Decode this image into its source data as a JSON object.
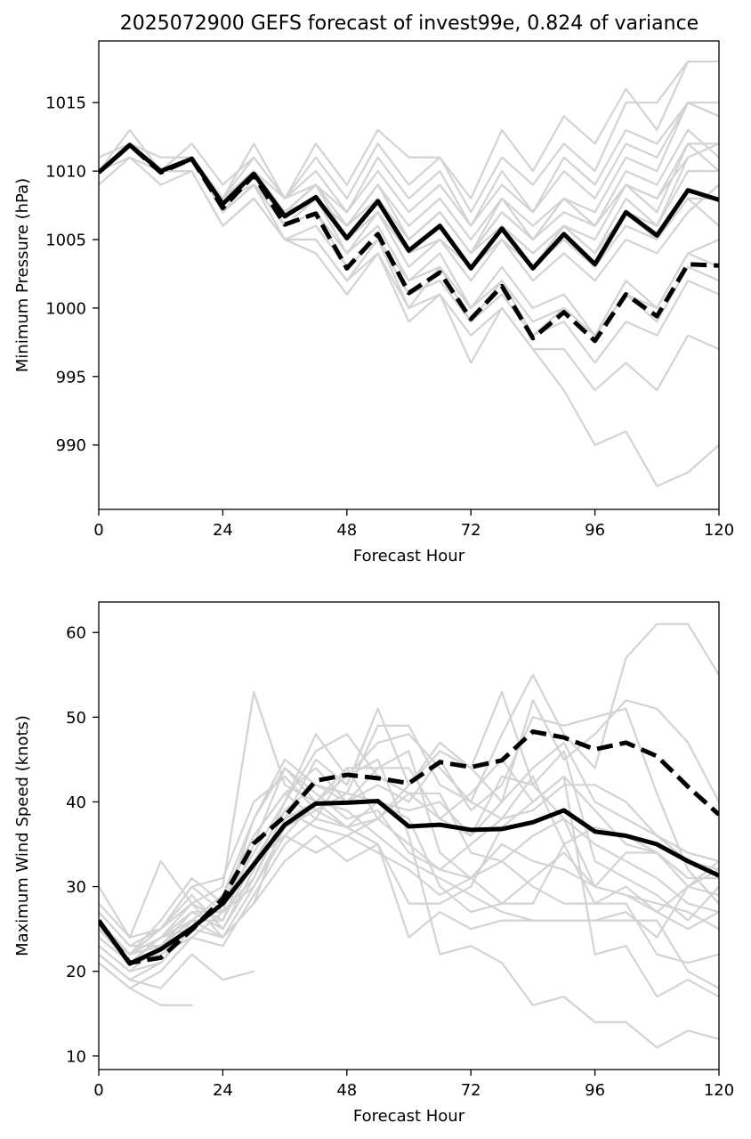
{
  "figure_title": "2025072900 GEFS forecast of invest99e, 0.824 of variance",
  "colors": {
    "members": "#d3d3d3",
    "main": "#000000",
    "background": "#ffffff"
  },
  "chart_data": [
    {
      "type": "line",
      "title": "2025072900 GEFS forecast of invest99e, 0.824 of variance",
      "xlabel": "Forecast Hour",
      "ylabel": "Minimum Pressure (hPa)",
      "xlim": [
        0,
        120
      ],
      "ylim": [
        985.3,
        1019.5
      ],
      "xticks": [
        0,
        24,
        48,
        72,
        96,
        120
      ],
      "yticks": [
        990,
        995,
        1000,
        1005,
        1010,
        1015
      ],
      "grid": false,
      "x": [
        0,
        6,
        12,
        18,
        24,
        30,
        36,
        42,
        48,
        54,
        60,
        66,
        72,
        78,
        84,
        90,
        96,
        102,
        108,
        114,
        120
      ],
      "series": [
        {
          "style": "solid",
          "color": "#000000",
          "values": [
            1009.9,
            1011.9,
            1010.0,
            1010.9,
            1007.6,
            1009.8,
            1006.7,
            1008.1,
            1005.1,
            1007.8,
            1004.2,
            1006.0,
            1002.9,
            1005.8,
            1002.9,
            1005.4,
            1003.2,
            1007.0,
            1005.3,
            1008.6,
            1007.9
          ]
        },
        {
          "style": "dashed",
          "color": "#000000",
          "values": [
            1009.9,
            1011.9,
            1009.9,
            1010.9,
            1007.3,
            1009.7,
            1006.1,
            1006.9,
            1002.9,
            1005.4,
            1001.1,
            1002.6,
            999.2,
            1001.6,
            997.8,
            999.7,
            997.6,
            1001.0,
            999.4,
            1003.2,
            1003.1
          ]
        }
      ],
      "members": [
        [
          1010,
          1012,
          1010,
          1011,
          1008,
          1010,
          1007,
          1009,
          1006,
          1008,
          1005,
          1007,
          1004,
          1006,
          1004,
          1006,
          1005,
          1009,
          1007,
          1012,
          1012
        ],
        [
          1010,
          1012,
          1010,
          1011,
          1008,
          1010,
          1007,
          1009,
          1006,
          1009,
          1006,
          1008,
          1005,
          1008,
          1006,
          1008,
          1007,
          1011,
          1010,
          1015,
          1014
        ],
        [
          1010,
          1013,
          1010,
          1012,
          1009,
          1011,
          1008,
          1010,
          1007,
          1010,
          1007,
          1009,
          1006,
          1009,
          1007,
          1010,
          1008,
          1012,
          1011,
          1015,
          1015
        ],
        [
          1011,
          1012,
          1010,
          1011,
          1008,
          1012,
          1008,
          1012,
          1009,
          1013,
          1011,
          1011,
          1008,
          1013,
          1010,
          1014,
          1012,
          1016,
          1013,
          1018,
          1018
        ],
        [
          1010,
          1012,
          1011,
          1011,
          1008,
          1010,
          1008,
          1011,
          1008,
          1012,
          1009,
          1011,
          1007,
          1011,
          1009,
          1012,
          1010,
          1015,
          1015,
          1018,
          1018
        ],
        [
          1010,
          1012,
          1010,
          1011,
          1008,
          1010,
          1007,
          1009,
          1006,
          1008,
          1005,
          1007,
          1004,
          1007,
          1005,
          1007,
          1006,
          1009,
          1008,
          1011,
          1012
        ],
        [
          1010,
          1012,
          1010,
          1011,
          1008,
          1010,
          1007,
          1008,
          1006,
          1008,
          1005,
          1007,
          1004,
          1007,
          1005,
          1008,
          1006,
          1010,
          1009,
          1013,
          1011
        ],
        [
          1010,
          1012,
          1010,
          1011,
          1008,
          1009,
          1006,
          1008,
          1005,
          1007,
          1004,
          1006,
          1003,
          1006,
          1004,
          1006,
          1004,
          1008,
          1006,
          1010,
          1010
        ],
        [
          1010,
          1012,
          1010,
          1011,
          1008,
          1009,
          1007,
          1008,
          1005,
          1007,
          1004,
          1005,
          1003,
          1005,
          1003,
          1005,
          1003,
          1006,
          1005,
          1008,
          1006
        ],
        [
          1010,
          1012,
          1010,
          1011,
          1007,
          1009,
          1006,
          1007,
          1004,
          1006,
          1002,
          1004,
          1000,
          1003,
          1000,
          1001,
          998,
          1001,
          1000,
          1004,
          1003
        ],
        [
          1010,
          1012,
          1010,
          1011,
          1007,
          1009,
          1006,
          1007,
          1003,
          1005,
          1002,
          1003,
          1000,
          1002,
          999,
          1000,
          998,
          1001,
          999,
          1003,
          1002
        ],
        [
          1010,
          1012,
          1010,
          1011,
          1007,
          1009,
          1005,
          1006,
          1003,
          1005,
          1001,
          1002,
          999,
          1001,
          998,
          999,
          996,
          999,
          998,
          1002,
          1001
        ],
        [
          1010,
          1012,
          1010,
          1010,
          1006,
          1008,
          1005,
          1005,
          1002,
          1004,
          1000,
          1001,
          998,
          1000,
          997,
          997,
          994,
          996,
          994,
          998,
          997
        ],
        [
          1010,
          1012,
          1010,
          1010,
          1006,
          1008,
          1005,
          1004,
          1001,
          1004,
          999,
          1001,
          996,
          1000,
          997,
          994,
          990,
          991,
          987,
          988,
          990
        ],
        [
          1009,
          1011,
          1009,
          1010,
          1006,
          1008,
          1005,
          1005,
          1002,
          1005,
          1000,
          1003,
          999,
          1002,
          998,
          1000,
          998,
          1002,
          1000,
          1004,
          1005
        ],
        [
          1010,
          1011,
          1010,
          1011,
          1008,
          1011,
          1008,
          1009,
          1007,
          1011,
          1008,
          1010,
          1006,
          1010,
          1007,
          1011,
          1009,
          1013,
          1012,
          1015,
          1014
        ],
        [
          1010,
          1012,
          1010,
          1011,
          1008,
          1010,
          1007,
          1009,
          1006,
          1009,
          1005,
          1007,
          1004,
          1008,
          1005,
          1008,
          1006,
          1009,
          1008,
          1012,
          1010
        ],
        [
          1010,
          1012,
          1010,
          1011,
          1007,
          1010,
          1006,
          1008,
          1004,
          1007,
          1003,
          1005,
          1002,
          1005,
          1002,
          1004,
          1002,
          1005,
          1004,
          1007,
          1009
        ],
        [
          1010,
          1012,
          1010,
          1011,
          1008,
          1010,
          1007,
          1009,
          1005,
          1008,
          1004,
          1006,
          1003,
          1006,
          1003,
          1006,
          1004,
          1007,
          1006,
          1011,
          1012
        ],
        [
          1010,
          1012,
          1010,
          1011,
          1008,
          1010,
          1007,
          1009,
          1005,
          1008,
          1004,
          1006,
          1003,
          1006,
          1003,
          1005,
          1003,
          1007,
          1005,
          1008,
          1008
        ]
      ]
    },
    {
      "type": "line",
      "title": "",
      "xlabel": "Forecast Hour",
      "ylabel": "Maximum Wind Speed (knots)",
      "xlim": [
        0,
        120
      ],
      "ylim": [
        8.4,
        63.6
      ],
      "xticks": [
        0,
        24,
        48,
        72,
        96,
        120
      ],
      "yticks": [
        10,
        20,
        30,
        40,
        50,
        60
      ],
      "grid": false,
      "x": [
        0,
        6,
        12,
        18,
        24,
        30,
        36,
        42,
        48,
        54,
        60,
        66,
        72,
        78,
        84,
        90,
        96,
        102,
        108,
        114,
        120
      ],
      "series": [
        {
          "style": "solid",
          "color": "#000000",
          "values": [
            26,
            20.9,
            22.6,
            25.1,
            28,
            32.6,
            37.3,
            39.8,
            39.9,
            40.1,
            37.1,
            37.3,
            36.7,
            36.8,
            37.6,
            39,
            36.5,
            36,
            35,
            33,
            31.3
          ]
        },
        {
          "style": "dashed",
          "color": "#000000",
          "values": [
            25.9,
            21,
            21.6,
            24.9,
            28.6,
            35.1,
            38.3,
            42.5,
            43.2,
            42.8,
            42.2,
            44.7,
            44.1,
            44.9,
            48.3,
            47.6,
            46.2,
            47,
            45.4,
            41.8,
            38.5
          ]
        }
      ],
      "members": [
        [
          30,
          24,
          25,
          28,
          30,
          53,
          42,
          40,
          44,
          38,
          35,
          32,
          31,
          35,
          33,
          32,
          30,
          29,
          28,
          27,
          25
        ],
        [
          28,
          24,
          33,
          28,
          24,
          28,
          38,
          45,
          42,
          51,
          42,
          47,
          44,
          53,
          42,
          38,
          35,
          33,
          31,
          28,
          27
        ],
        [
          26,
          22,
          26,
          31,
          28,
          34,
          40,
          48,
          43,
          47,
          48,
          44,
          40,
          48,
          55,
          48,
          44,
          57,
          61,
          61,
          55
        ],
        [
          25,
          22,
          25,
          30,
          27,
          38,
          45,
          42,
          40,
          42,
          40,
          45,
          39,
          42,
          50,
          49,
          50,
          51,
          41,
          32,
          28
        ],
        [
          24,
          21,
          24,
          28,
          26,
          35,
          44,
          40,
          37,
          38,
          42,
          46,
          44,
          40,
          52,
          45,
          48,
          52,
          51,
          47,
          40
        ],
        [
          23,
          20,
          23,
          27,
          25,
          32,
          40,
          46,
          48,
          43,
          41,
          38,
          41,
          45,
          40,
          43,
          39,
          35,
          34,
          31,
          31
        ],
        [
          22,
          19,
          21,
          26,
          24,
          30,
          36,
          40,
          39,
          36,
          33,
          31,
          29,
          27,
          26,
          26,
          26,
          27,
          24,
          30,
          29
        ],
        [
          21,
          18,
          20,
          24,
          23,
          29,
          35,
          38,
          37,
          35,
          24,
          27,
          25,
          26,
          26,
          26,
          26,
          26,
          26,
          20,
          18
        ],
        [
          22,
          19,
          18,
          22,
          19,
          20,
          null,
          null,
          null,
          null,
          null,
          null,
          null,
          null,
          null,
          null,
          null,
          null,
          null,
          null,
          null
        ],
        [
          21,
          18,
          16,
          16,
          null,
          null,
          null,
          null,
          null,
          null,
          null,
          null,
          null,
          null,
          null,
          null,
          null,
          null,
          null,
          null,
          null
        ],
        [
          24,
          21,
          22,
          24,
          27,
          31,
          38,
          40,
          43,
          45,
          36,
          22,
          23,
          21,
          16,
          17,
          14,
          14,
          11,
          13,
          12
        ],
        [
          25,
          22,
          23,
          25,
          28,
          33,
          39,
          42,
          41,
          40,
          38,
          30,
          27,
          28,
          28,
          35,
          28,
          28,
          22,
          21,
          22
        ],
        [
          27,
          23,
          23,
          26,
          29,
          36,
          41,
          44,
          40,
          44,
          46,
          34,
          31,
          33,
          36,
          38,
          30,
          29,
          27,
          30,
          32
        ],
        [
          26,
          22,
          24,
          27,
          27,
          30,
          37,
          39,
          41,
          49,
          49,
          42,
          40,
          38,
          39,
          42,
          42,
          40,
          36,
          33,
          32
        ],
        [
          25,
          21,
          24,
          25,
          28,
          36,
          41,
          38,
          44,
          44,
          44,
          38,
          36,
          40,
          44,
          47,
          40,
          38,
          36,
          34,
          33
        ],
        [
          27,
          23,
          25,
          29,
          25,
          31,
          39,
          37,
          36,
          38,
          41,
          41,
          34,
          33,
          30,
          28,
          28,
          30,
          27,
          25,
          27
        ],
        [
          23,
          20,
          21,
          25,
          24,
          28,
          33,
          36,
          33,
          35,
          28,
          28,
          30,
          37,
          40,
          43,
          22,
          23,
          17,
          19,
          17
        ],
        [
          26,
          22,
          25,
          30,
          31,
          40,
          43,
          39,
          37,
          40,
          39,
          40,
          36,
          43,
          42,
          46,
          33,
          31,
          29,
          26,
          30
        ],
        [
          24,
          21,
          24,
          26,
          29,
          38,
          44,
          41,
          38,
          39,
          34,
          32,
          35,
          38,
          43,
          35,
          37,
          36,
          34,
          30,
          33
        ],
        [
          25,
          22,
          23,
          26,
          26,
          33,
          36,
          34,
          36,
          34,
          32,
          29,
          31,
          28,
          31,
          34,
          30,
          34,
          34,
          31,
          31
        ]
      ]
    }
  ]
}
